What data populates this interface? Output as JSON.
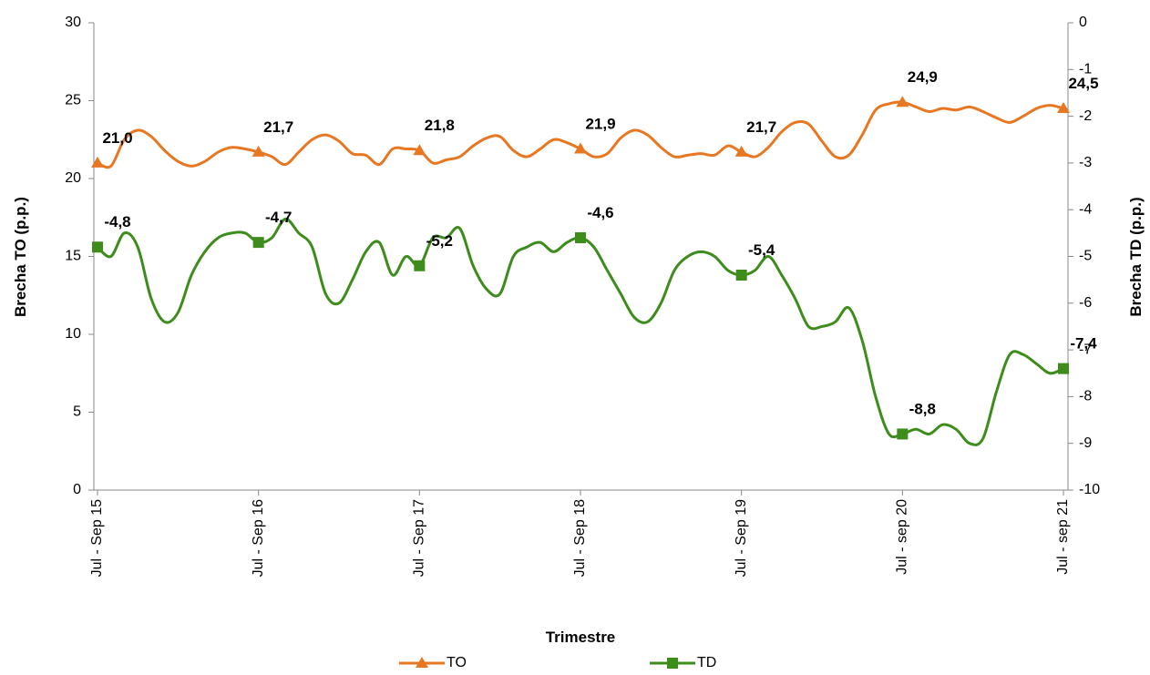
{
  "chart_data": {
    "type": "line",
    "x_label": "Trimestre",
    "y_label": "Brecha TO (p.p.)",
    "y2_label": "Brecha TD (p.p.)",
    "categories": [
      "Jul - Sep 15",
      null,
      null,
      null,
      null,
      null,
      null,
      null,
      null,
      null,
      null,
      null,
      "Jul - Sep 16",
      null,
      null,
      null,
      null,
      null,
      null,
      null,
      null,
      null,
      null,
      null,
      "Jul - Sep 17",
      null,
      null,
      null,
      null,
      null,
      null,
      null,
      null,
      null,
      null,
      null,
      "Jul - Sep 18",
      null,
      null,
      null,
      null,
      null,
      null,
      null,
      null,
      null,
      null,
      null,
      "Jul - Sep 19",
      null,
      null,
      null,
      null,
      null,
      null,
      null,
      null,
      null,
      null,
      null,
      "Jul - sep 20",
      null,
      null,
      null,
      null,
      null,
      null,
      null,
      null,
      null,
      null,
      null,
      "Jul - sep 21"
    ],
    "series": [
      {
        "name": "TO",
        "color": "#e87722",
        "marker": "triangle",
        "axis": "y",
        "values": [
          21.0,
          20.8,
          22.5,
          23.1,
          22.7,
          21.8,
          21.1,
          20.8,
          21.1,
          21.7,
          22.0,
          21.9,
          21.7,
          21.4,
          20.9,
          21.7,
          22.5,
          22.8,
          22.4,
          21.6,
          21.5,
          20.9,
          21.9,
          21.9,
          21.8,
          21.0,
          21.2,
          21.4,
          22.1,
          22.6,
          22.7,
          21.8,
          21.4,
          21.9,
          22.5,
          22.3,
          21.9,
          21.4,
          21.6,
          22.6,
          23.1,
          22.8,
          22.0,
          21.4,
          21.5,
          21.6,
          21.5,
          22.1,
          21.7,
          21.4,
          22.0,
          23.0,
          23.6,
          23.5,
          22.4,
          21.4,
          21.5,
          22.8,
          24.4,
          24.8,
          24.9,
          24.6,
          24.3,
          24.5,
          24.4,
          24.6,
          24.3,
          23.9,
          23.6,
          24.0,
          24.5,
          24.7,
          24.5
        ],
        "value_labels": [
          "21,0",
          null,
          null,
          null,
          null,
          null,
          null,
          null,
          null,
          null,
          null,
          null,
          "21,7",
          null,
          null,
          null,
          null,
          null,
          null,
          null,
          null,
          null,
          null,
          null,
          "21,8",
          null,
          null,
          null,
          null,
          null,
          null,
          null,
          null,
          null,
          null,
          null,
          "21,9",
          null,
          null,
          null,
          null,
          null,
          null,
          null,
          null,
          null,
          null,
          null,
          "21,7",
          null,
          null,
          null,
          null,
          null,
          null,
          null,
          null,
          null,
          null,
          null,
          "24,9",
          null,
          null,
          null,
          null,
          null,
          null,
          null,
          null,
          null,
          null,
          null,
          "24,5"
        ]
      },
      {
        "name": "TD",
        "color": "#3d8c1c",
        "marker": "square",
        "axis": "y2",
        "values": [
          -4.8,
          -5.0,
          -4.5,
          -4.8,
          -5.9,
          -6.4,
          -6.2,
          -5.4,
          -4.9,
          -4.6,
          -4.5,
          -4.5,
          -4.7,
          -4.6,
          -4.2,
          -4.5,
          -4.8,
          -5.8,
          -6.0,
          -5.5,
          -4.9,
          -4.7,
          -5.4,
          -5.0,
          -5.2,
          -4.6,
          -4.6,
          -4.4,
          -5.2,
          -5.7,
          -5.8,
          -5.0,
          -4.8,
          -4.7,
          -4.9,
          -4.7,
          -4.6,
          -4.8,
          -5.3,
          -5.8,
          -6.3,
          -6.4,
          -6.0,
          -5.3,
          -5.0,
          -4.9,
          -5.0,
          -5.3,
          -5.4,
          -5.3,
          -5.0,
          -5.4,
          -5.9,
          -6.5,
          -6.5,
          -6.4,
          -6.1,
          -6.8,
          -8.0,
          -8.8,
          -8.8,
          -8.7,
          -8.8,
          -8.6,
          -8.7,
          -9.0,
          -8.9,
          -7.9,
          -7.1,
          -7.1,
          -7.3,
          -7.5,
          -7.4
        ],
        "value_labels": [
          "-4,8",
          null,
          null,
          null,
          null,
          null,
          null,
          null,
          null,
          null,
          null,
          null,
          "-4,7",
          null,
          null,
          null,
          null,
          null,
          null,
          null,
          null,
          null,
          null,
          null,
          "-5,2",
          null,
          null,
          null,
          null,
          null,
          null,
          null,
          null,
          null,
          null,
          null,
          "-4,6",
          null,
          null,
          null,
          null,
          null,
          null,
          null,
          null,
          null,
          null,
          null,
          "-5,4",
          null,
          null,
          null,
          null,
          null,
          null,
          null,
          null,
          null,
          null,
          null,
          "-8,8",
          null,
          null,
          null,
          null,
          null,
          null,
          null,
          null,
          null,
          null,
          null,
          "-7,4"
        ]
      }
    ],
    "ylim": [
      0,
      30
    ],
    "yticks": [
      0,
      5,
      10,
      15,
      20,
      25,
      30
    ],
    "y2lim": [
      -10,
      0
    ],
    "y2ticks": [
      -10,
      -9,
      -8,
      -7,
      -6,
      -5,
      -4,
      -3,
      -2,
      -1,
      0
    ],
    "legend": "bottom",
    "smooth": true
  }
}
